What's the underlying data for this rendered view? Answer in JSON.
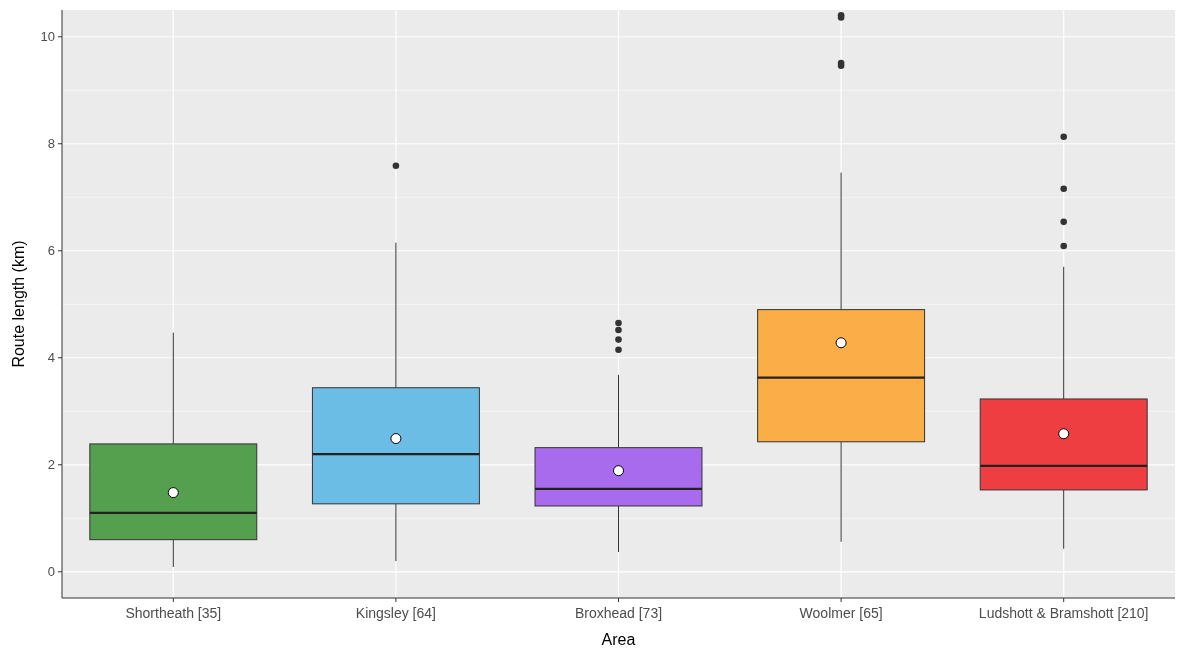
{
  "chart_data": {
    "type": "box",
    "xlabel": "Area",
    "ylabel": "Route length (km)",
    "categories": [
      "Shortheath [35]",
      "Kingsley [64]",
      "Broxhead [73]",
      "Woolmer [65]",
      "Ludshott & Bramshott [210]"
    ],
    "colors": [
      "#55a04f",
      "#6bbde6",
      "#a86bed",
      "#fbad47",
      "#ef3e42"
    ],
    "boxes": [
      {
        "low": 0.09,
        "q1": 0.6,
        "median": 1.1,
        "q3": 2.39,
        "high": 4.47,
        "mean": 1.48
      },
      {
        "low": 0.2,
        "q1": 1.27,
        "median": 2.2,
        "q3": 3.44,
        "high": 6.15,
        "mean": 2.49,
        "outliers": [
          7.59
        ]
      },
      {
        "low": 0.37,
        "q1": 1.23,
        "median": 1.55,
        "q3": 2.32,
        "high": 3.68,
        "mean": 1.89,
        "outliers": [
          4.15,
          4.34,
          4.52,
          4.65
        ]
      },
      {
        "low": 0.56,
        "q1": 2.43,
        "median": 3.63,
        "q3": 4.9,
        "high": 7.46,
        "mean": 4.28,
        "outliers": [
          9.46,
          9.51,
          10.36,
          10.4
        ]
      },
      {
        "low": 0.43,
        "q1": 1.53,
        "median": 1.98,
        "q3": 3.23,
        "high": 5.7,
        "mean": 2.58,
        "outliers": [
          6.09,
          6.54,
          7.16,
          8.13
        ]
      }
    ],
    "ylim": [
      -0.49,
      10.5
    ],
    "yticks": [
      0,
      2,
      4,
      6,
      8,
      10
    ],
    "grid": true
  }
}
